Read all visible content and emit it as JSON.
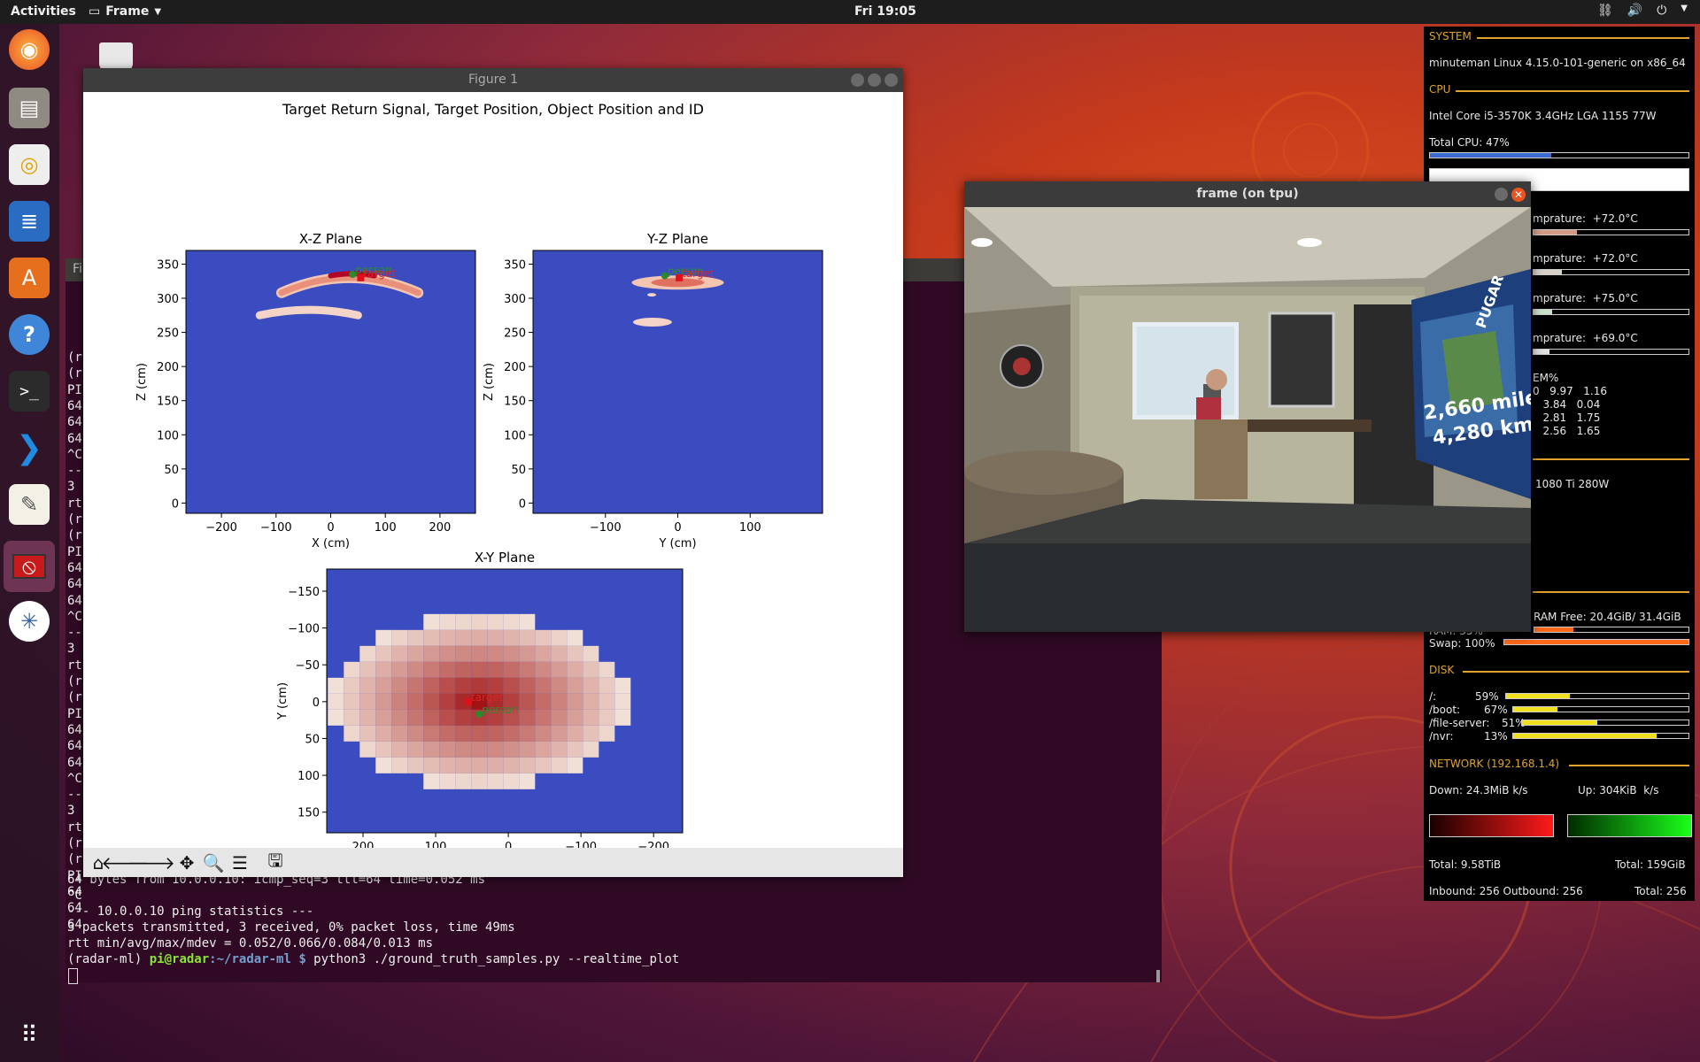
{
  "topbar": {
    "activities": "Activities",
    "app_name": "Frame",
    "clock": "Fri 19:05"
  },
  "terminal": {
    "fragment_lines": [
      "(r",
      "(r",
      "PI",
      "64",
      "64",
      "64",
      "^C",
      "--",
      "3",
      "rt",
      "(r",
      "(r",
      "PI",
      "64",
      "64",
      "64",
      "^C",
      "--",
      "3",
      "rt",
      "(r",
      "(r",
      "PI",
      "64",
      "64",
      "64",
      "^C",
      "--",
      "3",
      "rt",
      "(r",
      "(r",
      "PI",
      "64",
      "64",
      "64"
    ],
    "lines": [
      "64 bytes from 10.0.0.10: icmp_seq=3 ttl=64 time=0.052 ms",
      "^C",
      "--- 10.0.0.10 ping statistics ---",
      "3 packets transmitted, 3 received, 0% packet loss, time 49ms",
      "rtt min/avg/max/mdev = 0.052/0.066/0.084/0.013 ms"
    ],
    "prompt_env": "(radar-ml)",
    "prompt_user": "pi@radar",
    "prompt_path": ":~/radar-ml $",
    "prompt_cmd": " python3 ./ground_truth_samples.py --realtime_plot",
    "behind_title": "Fi"
  },
  "figure": {
    "window_title": "Figure 1",
    "suptitle": "Target Return Signal, Target Position, Object Position and ID",
    "toolbar": [
      "home-icon",
      "back-icon",
      "forward-icon",
      "pan-icon",
      "zoom-icon",
      "configure-icon",
      "save-icon"
    ]
  },
  "chart_data": [
    {
      "type": "heatmap",
      "title": "X-Z Plane",
      "xlabel": "X (cm)",
      "ylabel": "Z (cm)",
      "xticks": [
        "−200",
        "−100",
        "0",
        "100",
        "200"
      ],
      "yticks": [
        "0",
        "50",
        "100",
        "150",
        "200",
        "250",
        "300",
        "350"
      ],
      "xlim": [
        -265,
        265
      ],
      "ylim": [
        -15,
        370
      ],
      "annotations": [
        {
          "label": "person",
          "x": 40,
          "y": 335,
          "color": "#2e8b2e"
        },
        {
          "label": "target",
          "x": 55,
          "y": 330,
          "color": "#d62728"
        }
      ]
    },
    {
      "type": "heatmap",
      "title": "Y-Z Plane",
      "xlabel": "Y (cm)",
      "ylabel": "Z (cm)",
      "xticks": [
        "−100",
        "0",
        "100"
      ],
      "yticks": [
        "0",
        "50",
        "100",
        "150",
        "200",
        "250",
        "300",
        "350"
      ],
      "xlim": [
        -200,
        200
      ],
      "ylim": [
        -15,
        370
      ],
      "annotations": [
        {
          "label": "person",
          "x": -18,
          "y": 333,
          "color": "#2e8b2e"
        },
        {
          "label": "target",
          "x": 2,
          "y": 330,
          "color": "#d62728"
        }
      ]
    },
    {
      "type": "heatmap",
      "title": "X-Y Plane",
      "xlabel": "X (cm)",
      "ylabel": "Y (cm)",
      "xticks": [
        "200",
        "100",
        "0",
        "−100",
        "−200"
      ],
      "yticks": [
        "−150",
        "−100",
        "−50",
        "0",
        "50",
        "100",
        "150"
      ],
      "xlim": [
        250,
        -240
      ],
      "ylim": [
        -180,
        178
      ],
      "annotations": [
        {
          "label": "person",
          "x": 40,
          "y": 17,
          "color": "#2e8b2e"
        },
        {
          "label": "target",
          "x": 55,
          "y": 0,
          "color": "#d62728"
        }
      ]
    }
  ],
  "camera": {
    "window_title": "frame (on tpu)",
    "tv_text_1": "2,660 miles",
    "tv_text_2": "4,280 km",
    "tv_text_3": "PUGAR"
  },
  "conky": {
    "system_hdr": "SYSTEM",
    "system_line": "minuteman Linux 4.15.0-101-generic on x86_64",
    "cpu_hdr": "CPU",
    "cpu_model": "Intel Core i5-3570K 3.4GHz LGA 1155 77W",
    "total_cpu": "Total CPU: 47%",
    "total_cpu_pct": 47,
    "temps": [
      "mprature:  +72.0°C",
      "mprature:  +72.0°C",
      "mprature:  +75.0°C",
      "mprature:  +69.0°C"
    ],
    "temp_fill": [
      0.28,
      0.18,
      0.12,
      0.1
    ],
    "mem_hdr": "EM%",
    "mem_rows": [
      "0   9.97   1.16",
      "   3.84   0.04",
      "   2.81   1.75",
      "   2.56   1.65"
    ],
    "gpu": "1080 Ti 280W",
    "ram_free": "RAM Free: 20.4GiB/ 31.4GiB",
    "ram_label": "RAM: 35%",
    "ram_pct": 35,
    "swap": "Swap: 100%",
    "swap_pct": 100,
    "disk_hdr": "DISK",
    "disks": [
      {
        "name": "/:",
        "pct": "59%",
        "fill": 0.35
      },
      {
        "name": "/boot:",
        "pct": "67%",
        "fill": 0.25
      },
      {
        "name": "/file-server:",
        "pct": "51%",
        "fill": 0.45
      },
      {
        "name": "/nvr:",
        "pct": "13%",
        "fill": 0.82
      }
    ],
    "net_hdr": "NETWORK (192.168.1.4)",
    "down": "Down: 24.3MiB k/s",
    "up": "Up: 304KiB  k/s",
    "total_down": "Total: 9.58TiB",
    "total_up": "Total: 159GiB",
    "inout": "Inbound: 256 Outbound: 256",
    "total_conn": "Total: 256"
  }
}
